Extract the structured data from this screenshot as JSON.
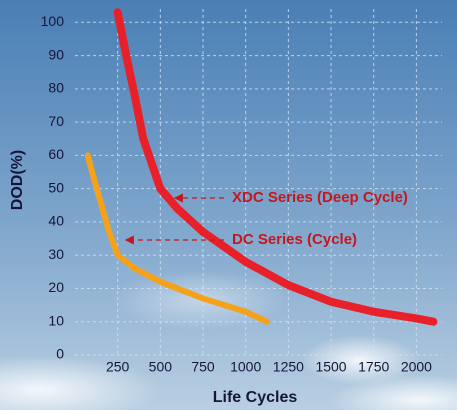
{
  "chart_data": {
    "type": "line",
    "x_label": "Life Cycles",
    "y_label": "DOD(%)",
    "xlim": [
      0,
      2150
    ],
    "ylim": [
      0,
      104
    ],
    "xticks": [
      250,
      500,
      750,
      1000,
      1250,
      1500,
      1750,
      2000
    ],
    "yticks": [
      0,
      10,
      20,
      30,
      40,
      50,
      60,
      70,
      80,
      90,
      100
    ],
    "grid": true,
    "series": [
      {
        "name": "XDC Series (Deep Cycle)",
        "color": "#e8202a",
        "width": 8,
        "x": [
          250,
          300,
          350,
          400,
          500,
          600,
          750,
          1000,
          1250,
          1500,
          1750,
          2000,
          2100
        ],
        "values": [
          103,
          90,
          78,
          65,
          50,
          44,
          37,
          28,
          21,
          16,
          13,
          11,
          10
        ]
      },
      {
        "name": "DC Series (Cycle)",
        "color": "#f5a21b",
        "width": 6,
        "x": [
          75,
          100,
          150,
          200,
          250,
          350,
          500,
          750,
          1000,
          1125
        ],
        "values": [
          60,
          55,
          46,
          37,
          30,
          26,
          22,
          17,
          13,
          10
        ]
      }
    ]
  }
}
